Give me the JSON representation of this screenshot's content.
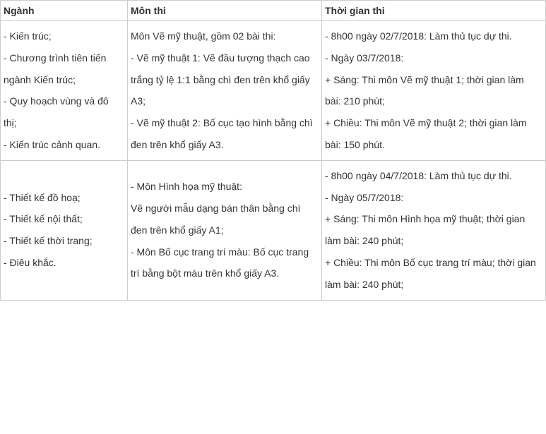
{
  "table": {
    "headers": {
      "col1": "Ngành",
      "col2": "Môn thi",
      "col3": "Thời gian thi"
    },
    "rows": [
      {
        "nganh": [
          "- Kiến trúc;",
          "- Chương trình tiên tiến ngành Kiến trúc;",
          "- Quy hoạch vùng và đô thị;",
          "- Kiến trúc cảnh quan."
        ],
        "mon": [
          "Môn Vẽ mỹ thuật, gồm 02 bài thi:",
          "- Vẽ mỹ thuật 1: Vẽ đầu tượng thạch cao trắng tỷ lệ 1:1 bằng chì đen trên khổ giấy A3;",
          "- Vẽ mỹ thuật 2: Bố cục tạo hình bằng chì đen trên khổ giấy A3."
        ],
        "thoigian": [
          "- 8h00 ngày 02/7/2018: Làm thủ tục dự thi.",
          "- Ngày 03/7/2018:",
          "+ Sáng: Thi môn Vẽ mỹ thuật 1; thời gian làm bài: 210 phút;",
          "+ Chiều: Thi môn Vẽ mỹ thuật 2; thời gian làm bài: 150 phút."
        ]
      },
      {
        "nganh": [
          "- Thiết kế đồ hoạ;",
          "- Thiết kế nội thất;",
          "- Thiết kế thời trang;",
          "- Điêu khắc."
        ],
        "mon": [
          "- Môn Hình họa mỹ thuật:",
          "Vẽ người mẫu dạng bán thân bằng chì đen trên khổ giấy A1;",
          "- Môn Bố cục trang trí màu: Bố cục trang trí bằng bột màu trên khổ giấy A3."
        ],
        "thoigian": [
          "- 8h00 ngày 04/7/2018: Làm thủ tục dự thi.",
          "- Ngày 05/7/2018:",
          "+ Sáng: Thi môn Hình họa mỹ thuật; thời gian làm bài: 240 phút;",
          "+ Chiều: Thi môn Bố cục trang trí màu; thời gian làm bài: 240 phút;"
        ]
      }
    ]
  }
}
